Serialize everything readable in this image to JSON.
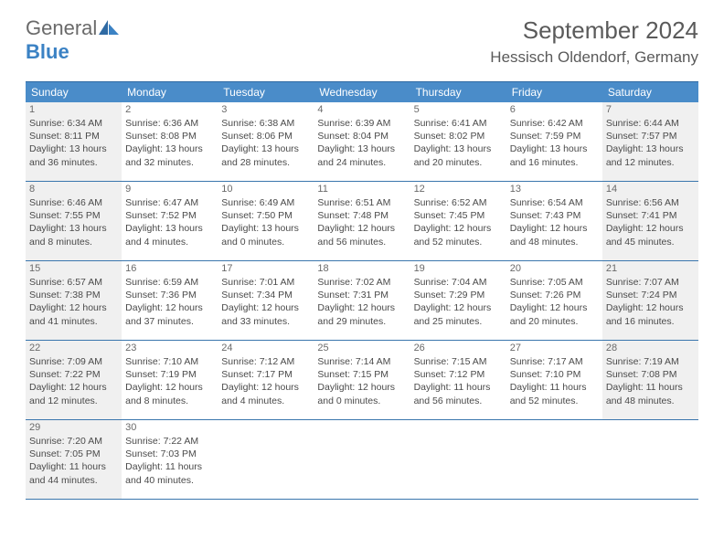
{
  "brand": {
    "general": "General",
    "blue": "Blue"
  },
  "title": "September 2024",
  "location": "Hessisch Oldendorf, Germany",
  "colors": {
    "header_bg": "#4a8cc9",
    "border": "#3a76ad",
    "gray_bg": "#f0f0f0",
    "text": "#4a4a4a",
    "logo_blue": "#3b82c4"
  },
  "weekdays": [
    "Sunday",
    "Monday",
    "Tuesday",
    "Wednesday",
    "Thursday",
    "Friday",
    "Saturday"
  ],
  "weeks": [
    [
      {
        "num": "1",
        "gray": true,
        "sunrise": "6:34 AM",
        "sunset": "8:11 PM",
        "dl1": "13 hours",
        "dl2": "36 minutes."
      },
      {
        "num": "2",
        "gray": false,
        "sunrise": "6:36 AM",
        "sunset": "8:08 PM",
        "dl1": "13 hours",
        "dl2": "32 minutes."
      },
      {
        "num": "3",
        "gray": false,
        "sunrise": "6:38 AM",
        "sunset": "8:06 PM",
        "dl1": "13 hours",
        "dl2": "28 minutes."
      },
      {
        "num": "4",
        "gray": false,
        "sunrise": "6:39 AM",
        "sunset": "8:04 PM",
        "dl1": "13 hours",
        "dl2": "24 minutes."
      },
      {
        "num": "5",
        "gray": false,
        "sunrise": "6:41 AM",
        "sunset": "8:02 PM",
        "dl1": "13 hours",
        "dl2": "20 minutes."
      },
      {
        "num": "6",
        "gray": false,
        "sunrise": "6:42 AM",
        "sunset": "7:59 PM",
        "dl1": "13 hours",
        "dl2": "16 minutes."
      },
      {
        "num": "7",
        "gray": true,
        "sunrise": "6:44 AM",
        "sunset": "7:57 PM",
        "dl1": "13 hours",
        "dl2": "12 minutes."
      }
    ],
    [
      {
        "num": "8",
        "gray": true,
        "sunrise": "6:46 AM",
        "sunset": "7:55 PM",
        "dl1": "13 hours",
        "dl2": "8 minutes."
      },
      {
        "num": "9",
        "gray": false,
        "sunrise": "6:47 AM",
        "sunset": "7:52 PM",
        "dl1": "13 hours",
        "dl2": "4 minutes."
      },
      {
        "num": "10",
        "gray": false,
        "sunrise": "6:49 AM",
        "sunset": "7:50 PM",
        "dl1": "13 hours",
        "dl2": "0 minutes."
      },
      {
        "num": "11",
        "gray": false,
        "sunrise": "6:51 AM",
        "sunset": "7:48 PM",
        "dl1": "12 hours",
        "dl2": "56 minutes."
      },
      {
        "num": "12",
        "gray": false,
        "sunrise": "6:52 AM",
        "sunset": "7:45 PM",
        "dl1": "12 hours",
        "dl2": "52 minutes."
      },
      {
        "num": "13",
        "gray": false,
        "sunrise": "6:54 AM",
        "sunset": "7:43 PM",
        "dl1": "12 hours",
        "dl2": "48 minutes."
      },
      {
        "num": "14",
        "gray": true,
        "sunrise": "6:56 AM",
        "sunset": "7:41 PM",
        "dl1": "12 hours",
        "dl2": "45 minutes."
      }
    ],
    [
      {
        "num": "15",
        "gray": true,
        "sunrise": "6:57 AM",
        "sunset": "7:38 PM",
        "dl1": "12 hours",
        "dl2": "41 minutes."
      },
      {
        "num": "16",
        "gray": false,
        "sunrise": "6:59 AM",
        "sunset": "7:36 PM",
        "dl1": "12 hours",
        "dl2": "37 minutes."
      },
      {
        "num": "17",
        "gray": false,
        "sunrise": "7:01 AM",
        "sunset": "7:34 PM",
        "dl1": "12 hours",
        "dl2": "33 minutes."
      },
      {
        "num": "18",
        "gray": false,
        "sunrise": "7:02 AM",
        "sunset": "7:31 PM",
        "dl1": "12 hours",
        "dl2": "29 minutes."
      },
      {
        "num": "19",
        "gray": false,
        "sunrise": "7:04 AM",
        "sunset": "7:29 PM",
        "dl1": "12 hours",
        "dl2": "25 minutes."
      },
      {
        "num": "20",
        "gray": false,
        "sunrise": "7:05 AM",
        "sunset": "7:26 PM",
        "dl1": "12 hours",
        "dl2": "20 minutes."
      },
      {
        "num": "21",
        "gray": true,
        "sunrise": "7:07 AM",
        "sunset": "7:24 PM",
        "dl1": "12 hours",
        "dl2": "16 minutes."
      }
    ],
    [
      {
        "num": "22",
        "gray": true,
        "sunrise": "7:09 AM",
        "sunset": "7:22 PM",
        "dl1": "12 hours",
        "dl2": "12 minutes."
      },
      {
        "num": "23",
        "gray": false,
        "sunrise": "7:10 AM",
        "sunset": "7:19 PM",
        "dl1": "12 hours",
        "dl2": "8 minutes."
      },
      {
        "num": "24",
        "gray": false,
        "sunrise": "7:12 AM",
        "sunset": "7:17 PM",
        "dl1": "12 hours",
        "dl2": "4 minutes."
      },
      {
        "num": "25",
        "gray": false,
        "sunrise": "7:14 AM",
        "sunset": "7:15 PM",
        "dl1": "12 hours",
        "dl2": "0 minutes."
      },
      {
        "num": "26",
        "gray": false,
        "sunrise": "7:15 AM",
        "sunset": "7:12 PM",
        "dl1": "11 hours",
        "dl2": "56 minutes."
      },
      {
        "num": "27",
        "gray": false,
        "sunrise": "7:17 AM",
        "sunset": "7:10 PM",
        "dl1": "11 hours",
        "dl2": "52 minutes."
      },
      {
        "num": "28",
        "gray": true,
        "sunrise": "7:19 AM",
        "sunset": "7:08 PM",
        "dl1": "11 hours",
        "dl2": "48 minutes."
      }
    ],
    [
      {
        "num": "29",
        "gray": true,
        "sunrise": "7:20 AM",
        "sunset": "7:05 PM",
        "dl1": "11 hours",
        "dl2": "44 minutes."
      },
      {
        "num": "30",
        "gray": false,
        "sunrise": "7:22 AM",
        "sunset": "7:03 PM",
        "dl1": "11 hours",
        "dl2": "40 minutes."
      },
      {
        "empty": true
      },
      {
        "empty": true
      },
      {
        "empty": true
      },
      {
        "empty": true
      },
      {
        "empty": true
      }
    ]
  ],
  "labels": {
    "sunrise": "Sunrise:",
    "sunset": "Sunset:",
    "daylight": "Daylight:",
    "and": "and"
  }
}
